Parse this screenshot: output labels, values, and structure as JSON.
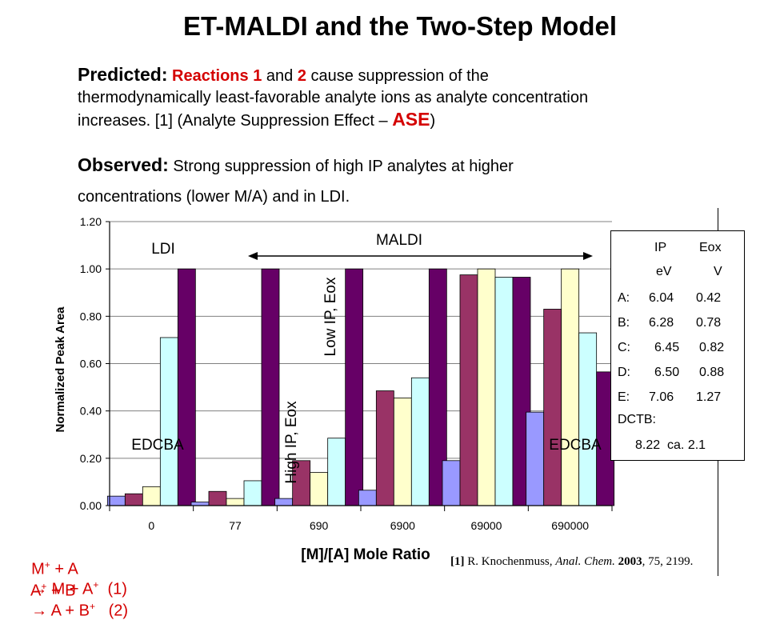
{
  "slide": {
    "title": "ET-MALDI and the Two-Step Model",
    "predicted": {
      "lead": "Predicted:",
      "r_text": "Reactions",
      "r1": "1",
      "and_text": "and",
      "r2": "2",
      "line1_rest": "cause suppression of the",
      "line2": "thermodynamically least-favorable analyte ions as analyte concentration",
      "line3_start": "increases. [1] (Analyte Suppression Effect –",
      "ase": "ASE",
      "line3_end": ")"
    },
    "observed": {
      "lead": "Observed:",
      "line1": "Strong suppression of high IP analytes at higher",
      "line2": "concentrations (lower M/A) and in LDI."
    },
    "equations": [
      {
        "left": "M",
        "mid": " + A ",
        "right": " M + A",
        "num": "  (1)"
      },
      {
        "left": "A",
        "mid": " + B ",
        "right": " A + B",
        "num": "   (2)"
      }
    ],
    "reference": {
      "num": "[1]",
      "authors": "R. Knochenmuss,",
      "journal": "Anal. Chem.",
      "year": "2003",
      "rest": ", 75, 2199."
    }
  },
  "legend_table": {
    "header1": [
      "IP",
      "Eox"
    ],
    "header2": [
      "eV",
      "V"
    ],
    "rows": [
      {
        "label": "A:",
        "ip": "6.04",
        "eox": "0.42"
      },
      {
        "label": "B:",
        "ip": "6.28",
        "eox": "0.78"
      },
      {
        "label": "C:",
        "ip": "6.45",
        "eox": "0.82"
      },
      {
        "label": "D:",
        "ip": "6.50",
        "eox": "0.88"
      },
      {
        "label": "E:",
        "ip": "7.06",
        "eox": "1.27"
      }
    ],
    "dctb_label": "DCTB:",
    "dctb_values": "8.22  ca. 2.1"
  },
  "chart_data": {
    "type": "bar",
    "categories": [
      "0",
      "77",
      "690",
      "6900",
      "69000",
      "690000"
    ],
    "ylabel": "Normalized Peak Area",
    "xlabel": "[M]/[A] Mole Ratio",
    "ylim": [
      0,
      1.2
    ],
    "yticks": [
      "0.00",
      "0.20",
      "0.40",
      "0.60",
      "0.80",
      "1.00",
      "1.20"
    ],
    "colors": [
      "#9999ff",
      "#993366",
      "#ffffcc",
      "#ccffff",
      "#660066"
    ],
    "series": [
      {
        "values": [
          0.04,
          0.015,
          0.03,
          0.065,
          0.19,
          0.395
        ]
      },
      {
        "values": [
          0.05,
          0.06,
          0.19,
          0.485,
          0.975,
          0.83
        ]
      },
      {
        "values": [
          0.08,
          0.03,
          0.14,
          0.455,
          1.0,
          1.0
        ]
      },
      {
        "values": [
          0.71,
          0.105,
          0.285,
          0.54,
          0.965,
          0.73
        ]
      },
      {
        "values": [
          1.0,
          1.0,
          1.0,
          1.0,
          0.965,
          0.565
        ]
      }
    ],
    "annotations": {
      "ldi": "LDI",
      "maldi": "MALDI",
      "edcba_left": "EDCBA",
      "edcba_right": "EDCBA",
      "high_ip": "High IP, Eox",
      "low_ip": "Low IP, Eox"
    }
  }
}
